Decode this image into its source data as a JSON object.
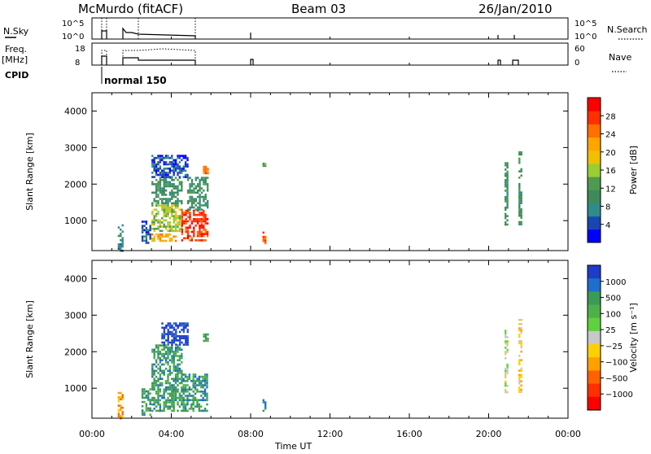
{
  "header": {
    "station": "McMurdo (fitACF)",
    "beam": "Beam 03",
    "date": "26/Jan/2010"
  },
  "status_panels": {
    "nsky_label": "N.Sky",
    "nsky_ticks": [
      "10^5",
      "10^0"
    ],
    "nsearch_label": "N.Search",
    "nsearch_ticks": [
      "10^5",
      "10^0"
    ],
    "freq_label": "Freq.",
    "freq_unit": "[MHz]",
    "freq_ticks": [
      "18",
      "8"
    ],
    "nave_label": "Nave",
    "nave_ticks": [
      "60",
      "0"
    ],
    "cpid_label": "CPID",
    "cpid_value": "normal 150"
  },
  "chart_data": [
    {
      "type": "heatmap",
      "name": "power",
      "ylabel": "Slant Range [km]",
      "yticks": [
        1000,
        2000,
        3000,
        4000
      ],
      "ylim": [
        180,
        4500
      ],
      "xlim": [
        0,
        24
      ],
      "colorbar": {
        "label": "Power [dB]",
        "ticks": [
          "4",
          "8",
          "12",
          "16",
          "20",
          "24",
          "28"
        ],
        "colors": [
          "#0000ff",
          "#1a46b4",
          "#2e8c8c",
          "#3f8a5a",
          "#4f9a50",
          "#9acd32",
          "#f0c000",
          "#ffa500",
          "#ff7000",
          "#ff3000",
          "#ff0000"
        ]
      },
      "regions": [
        {
          "t": [
            1.3,
            1.5
          ],
          "r": [
            180,
            900
          ],
          "c": 2
        },
        {
          "t": [
            2.5,
            2.9
          ],
          "r": [
            400,
            1000
          ],
          "c": 1
        },
        {
          "t": [
            3.0,
            4.2
          ],
          "r": [
            450,
            650
          ],
          "c": 7
        },
        {
          "t": [
            3.0,
            4.5
          ],
          "r": [
            700,
            1500
          ],
          "c": 5
        },
        {
          "t": [
            3.0,
            4.5
          ],
          "r": [
            1500,
            2200
          ],
          "c": 3
        },
        {
          "t": [
            3.0,
            4.8
          ],
          "r": [
            2200,
            2800
          ],
          "c": 1
        },
        {
          "t": [
            4.5,
            5.8
          ],
          "r": [
            450,
            1300
          ],
          "c": 9
        },
        {
          "t": [
            4.8,
            5.8
          ],
          "r": [
            1300,
            2200
          ],
          "c": 3
        },
        {
          "t": [
            5.6,
            5.8
          ],
          "r": [
            2300,
            2500
          ],
          "c": 8
        },
        {
          "t": [
            8.6,
            8.7
          ],
          "r": [
            400,
            700
          ],
          "c": 8
        },
        {
          "t": [
            8.6,
            8.7
          ],
          "r": [
            2500,
            2700
          ],
          "c": 4
        },
        {
          "t": [
            20.8,
            20.9
          ],
          "r": [
            900,
            2600
          ],
          "c": 3
        },
        {
          "t": [
            21.5,
            21.6
          ],
          "r": [
            900,
            2900
          ],
          "c": 3
        }
      ]
    },
    {
      "type": "heatmap",
      "name": "velocity",
      "ylabel": "Slant Range [km]",
      "yticks": [
        1000,
        2000,
        3000,
        4000
      ],
      "ylim": [
        180,
        4500
      ],
      "xlim": [
        0,
        24
      ],
      "colorbar": {
        "label": "Velocity [m s⁻¹]",
        "ticks": [
          "1000",
          "500",
          "100",
          "25",
          "−25",
          "−100",
          "−500",
          "−1000"
        ],
        "colors": [
          "#1e3cc8",
          "#1e6ecc",
          "#3a9a56",
          "#4fb04a",
          "#5fd040",
          "#c8c8c8",
          "#ffd000",
          "#ffa000",
          "#ff6000",
          "#ff3000",
          "#ff0000"
        ]
      },
      "regions": [
        {
          "t": [
            1.3,
            1.5
          ],
          "r": [
            180,
            900
          ],
          "c": 7
        },
        {
          "t": [
            2.5,
            2.9
          ],
          "r": [
            300,
            1000
          ],
          "c": 2
        },
        {
          "t": [
            3.0,
            5.8
          ],
          "r": [
            400,
            700
          ],
          "c": 2
        },
        {
          "t": [
            3.0,
            5.8
          ],
          "r": [
            700,
            1400
          ],
          "c": 2
        },
        {
          "t": [
            3.0,
            4.5
          ],
          "r": [
            1400,
            2200
          ],
          "c": 2
        },
        {
          "t": [
            3.5,
            4.8
          ],
          "r": [
            2200,
            2800
          ],
          "c": 0
        },
        {
          "t": [
            5.6,
            5.8
          ],
          "r": [
            2300,
            2500
          ],
          "c": 2
        },
        {
          "t": [
            8.6,
            8.7
          ],
          "r": [
            400,
            700
          ],
          "c": 2
        },
        {
          "t": [
            20.8,
            20.9
          ],
          "r": [
            900,
            2600
          ],
          "c": 5
        },
        {
          "t": [
            21.5,
            21.6
          ],
          "r": [
            900,
            2900
          ],
          "c": 6
        }
      ]
    }
  ],
  "x_axis": {
    "label": "Time UT",
    "ticks": [
      "00:00",
      "04:00",
      "08:00",
      "12:00",
      "16:00",
      "20:00",
      "00:00"
    ]
  }
}
